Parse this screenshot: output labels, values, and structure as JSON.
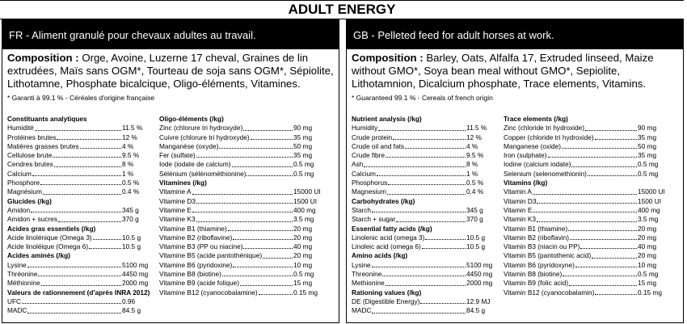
{
  "title": "ADULT ENERGY",
  "panels": [
    {
      "header": "FR - Aliment granulé pour chevaux adultes au travail.",
      "composition_label": "Composition :",
      "composition": "Orge, Avoine, Luzerne 17 cheval, Graines de lin extrudées, Maïs sans OGM*, Tourteau de soja sans OGM*, Sépiolite, Lithotamne, Phosphate bicalcique, Oligo-éléments, Vitamines.",
      "note": "* Garanti à 99.1 % - Céréales d'origine française",
      "columns": [
        [
          {
            "heading": "Constituants analytiques",
            "rows": [
              [
                "Humidité",
                "11.5 %"
              ],
              [
                "Protéines brutes",
                "12 %"
              ],
              [
                "Matières grasses brutes",
                "4 %"
              ],
              [
                "Cellulose brute",
                "9.5 %"
              ],
              [
                "Cendres brutes",
                "8 %"
              ],
              [
                "Calcium",
                "1 %"
              ],
              [
                "Phosphore",
                "0.5 %"
              ],
              [
                "Magnésium",
                "0.4 %"
              ]
            ]
          },
          {
            "heading": "Glucides (/kg)",
            "rows": [
              [
                "Amidon",
                "345 g"
              ],
              [
                "Amidon + sucres",
                "370 g"
              ]
            ]
          },
          {
            "heading": "Acides gras essentiels (/kg)",
            "rows": [
              [
                "Acide linolénique (Omega 3)",
                "10.5 g"
              ],
              [
                "Acide linoléique (Omega 6)",
                "10.5 g"
              ]
            ]
          },
          {
            "heading": "Acides aminés (/kg)",
            "rows": [
              [
                "Lysine",
                "5100 mg"
              ],
              [
                "Thréonine",
                "4450 mg"
              ],
              [
                "Méthionine",
                "2000 mg"
              ]
            ]
          },
          {
            "heading": "Valeurs de rationnement (d'après INRA 2012)",
            "rows": [
              [
                "UFC",
                "0.96"
              ],
              [
                "MADC",
                "84.5 g"
              ]
            ]
          }
        ],
        [
          {
            "heading": "Oligo-éléments (/kg)",
            "rows": [
              [
                "Zinc (chlorure tri hydroxyde)",
                "90 mg"
              ],
              [
                "Cuivre (chlorure tri hydroxyde)",
                "35 mg"
              ],
              [
                "Manganèse (oxyde)",
                "50 mg"
              ],
              [
                "Fer (sulfate)",
                "35 mg"
              ],
              [
                "Iode (iodate de calcium)",
                "0.5 mg"
              ],
              [
                "Sélénium (sélénométhionine)",
                "0.5 mg"
              ]
            ]
          },
          {
            "heading": "Vitamines (/kg)",
            "rows": [
              [
                "Vitamine A",
                "15000 UI"
              ],
              [
                "Vitamine D3",
                "1500 UI"
              ],
              [
                "Vitamine E",
                "400 mg"
              ],
              [
                "Vitamine K3",
                "3.5 mg"
              ],
              [
                "Vitamine B1 (thiamine)",
                "20 mg"
              ],
              [
                "Vitamine B2 (riboflavine)",
                "20 mg"
              ],
              [
                "Vitamine B3 (PP ou niacine)",
                "40 mg"
              ],
              [
                "Vitamine B5 (acide pantothénique)",
                "20 mg"
              ],
              [
                "Vitamine B6 (pyridoxine)",
                "10 mg"
              ],
              [
                "Vitamine B8 (biotine)",
                "0.5 mg"
              ],
              [
                "Vitamine B9 (acide folique)",
                "15 mg"
              ],
              [
                "Vitamine B12 (cyanocobalamine)",
                "0.15 mg"
              ]
            ]
          }
        ]
      ]
    },
    {
      "header": "GB - Pelleted feed for adult horses at work.",
      "composition_label": "Composition :",
      "composition": "Barley, Oats, Alfalfa 17, Extruded linseed, Maize without GMO*, Soya bean meal without GMO*, Sepiolite, Lithotamnion, Dicalcium phosphate, Trace elements, Vitamins.",
      "note": "* Guaranteed 99.1 % - Cereals of french origin",
      "columns": [
        [
          {
            "heading": "Nutrient analysis (/kg)",
            "rows": [
              [
                "Humidity",
                "11.5 %"
              ],
              [
                "Crude protein",
                "12 %"
              ],
              [
                "Crude oil and fats",
                "4 %"
              ],
              [
                "Crude fibre",
                "9.5 %"
              ],
              [
                "Ash",
                "8 %"
              ],
              [
                "Calcium",
                "1 %"
              ],
              [
                "Phosphorus",
                "0.5 %"
              ],
              [
                "Magnesium",
                "0.4 %"
              ]
            ]
          },
          {
            "heading": "Carbohydrates (/kg)",
            "rows": [
              [
                "Starch",
                "345 g"
              ],
              [
                "Starch + sugar",
                "370 g"
              ]
            ]
          },
          {
            "heading": "Essential fatty acids (/kg)",
            "rows": [
              [
                "Linolenic acid (omega 3)",
                "10.5 g"
              ],
              [
                "Linoleic acid (omega 6)",
                "10.5 g"
              ]
            ]
          },
          {
            "heading": "Amino acids (/kg)",
            "rows": [
              [
                "Lysine",
                "5100 mg"
              ],
              [
                "Threonine",
                "4450 mg"
              ],
              [
                "Methionine",
                "2000 mg"
              ]
            ]
          },
          {
            "heading": "Rationing values (/kg)",
            "rows": [
              [
                "DE (Digestible Energy)",
                "12.9 MJ"
              ],
              [
                "MADC",
                "84.5 g"
              ]
            ]
          }
        ],
        [
          {
            "heading": "Trace elements (/kg)",
            "rows": [
              [
                "Zinc (chloride tri hydroxide)",
                "90 mg"
              ],
              [
                "Copper (chloride tri hydroxide)",
                "35 mg"
              ],
              [
                "Manganese (oxide)",
                "50 mg"
              ],
              [
                "Iron (sulphate)",
                "35 mg"
              ],
              [
                "Iodine (calcium iodate)",
                "0.5 mg"
              ],
              [
                "Selenium (selenomethionin)",
                "0.5 mg"
              ]
            ]
          },
          {
            "heading": "Vitamins (/kg)",
            "rows": [
              [
                "Vitamin A",
                "15000 UI"
              ],
              [
                "Vitamin D3",
                "1500 UI"
              ],
              [
                "Vitamin E",
                "400 mg"
              ],
              [
                "Vitamin K3",
                "3.5 mg"
              ],
              [
                "Vitamin B1 (thiamine)",
                "20 mg"
              ],
              [
                "Vitamin B2 (riboflavin)",
                "20 mg"
              ],
              [
                "Vitamin B3 (niacin ou PP)",
                "40 mg"
              ],
              [
                "Vitamin B5 (pantothenic acid)",
                "20 mg"
              ],
              [
                "Vitamin B6 (pyridoxyne)",
                "10 mg"
              ],
              [
                "Vitamin B8 (biotine)",
                "0.5 mg"
              ],
              [
                "Vitamin B9 (folic acid)",
                "15 mg"
              ],
              [
                "Vitamin B12 (cyanocobalamin)",
                "0.15 mg"
              ]
            ]
          }
        ]
      ]
    }
  ]
}
